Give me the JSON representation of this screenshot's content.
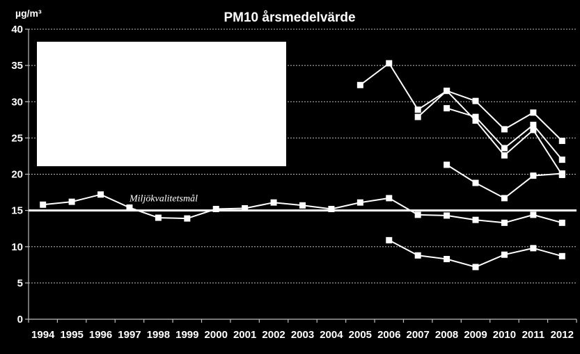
{
  "chart_data": {
    "type": "line",
    "title": "PM10 årsmedelvärde",
    "ylabel": "µg/m³",
    "xlabel": "",
    "ylim": [
      0,
      40
    ],
    "yticks": [
      "0",
      "5",
      "10",
      "15",
      "20",
      "25",
      "30",
      "35",
      "40"
    ],
    "categories": [
      "1994",
      "1995",
      "1996",
      "1997",
      "1998",
      "1999",
      "2000",
      "2001",
      "2002",
      "2003",
      "2004",
      "2005",
      "2006",
      "2007",
      "2008",
      "2009",
      "2010",
      "2011",
      "2012"
    ],
    "grid": true,
    "target": {
      "label": "Miljökvalitetsmål",
      "value": 15
    },
    "redacted_box": true,
    "series": [
      {
        "values": [
          null,
          null,
          null,
          null,
          null,
          null,
          null,
          null,
          null,
          null,
          null,
          32.3,
          35.3,
          28.9,
          31.5,
          30.1,
          26.2,
          28.5,
          24.6
        ]
      },
      {
        "values": [
          null,
          null,
          null,
          null,
          null,
          null,
          null,
          null,
          null,
          null,
          null,
          null,
          null,
          27.9,
          31.5,
          27.4,
          22.6,
          26.1,
          19.9
        ]
      },
      {
        "values": [
          null,
          null,
          null,
          null,
          null,
          null,
          null,
          null,
          null,
          null,
          null,
          null,
          null,
          null,
          29.1,
          27.9,
          23.6,
          26.8,
          22.0
        ]
      },
      {
        "values": [
          null,
          null,
          null,
          null,
          null,
          null,
          null,
          null,
          null,
          null,
          null,
          null,
          null,
          null,
          21.3,
          18.8,
          16.7,
          19.8,
          20.1
        ]
      },
      {
        "values": [
          15.8,
          16.2,
          17.2,
          15.4,
          14.0,
          13.9,
          15.2,
          15.3,
          16.1,
          15.7,
          15.2,
          16.1,
          16.7,
          14.4,
          14.3,
          13.7,
          13.3,
          14.4,
          13.3
        ]
      },
      {
        "values": [
          null,
          null,
          null,
          null,
          null,
          null,
          null,
          null,
          null,
          null,
          null,
          null,
          10.9,
          8.8,
          8.3,
          7.2,
          8.9,
          9.8,
          8.7
        ]
      }
    ]
  }
}
